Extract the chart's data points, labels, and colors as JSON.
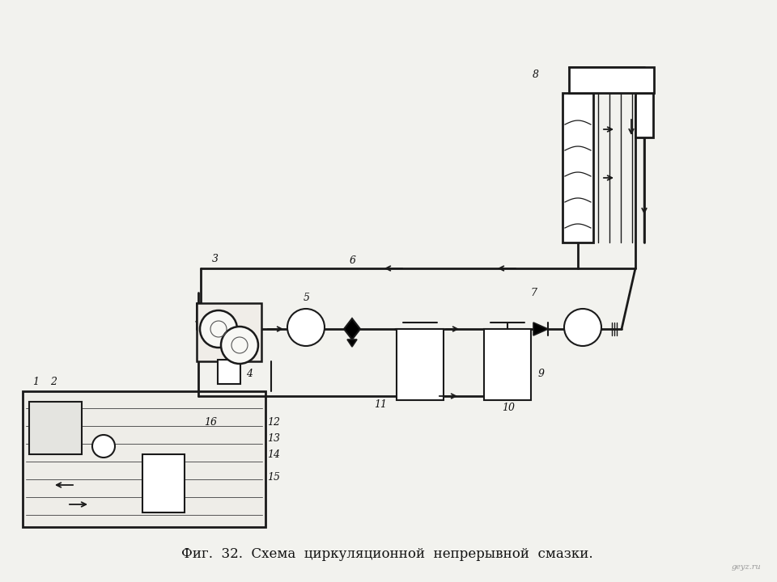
{
  "title": "Фиг.  32.  Схема  циркуляционной  непрерывной  смазки.",
  "bg_color": "#f2f2ee",
  "line_color": "#1a1a1a",
  "label_color": "#111111",
  "watermark": "geyz.ru",
  "fig_width": 9.6,
  "fig_height": 7.2,
  "dpi": 100
}
